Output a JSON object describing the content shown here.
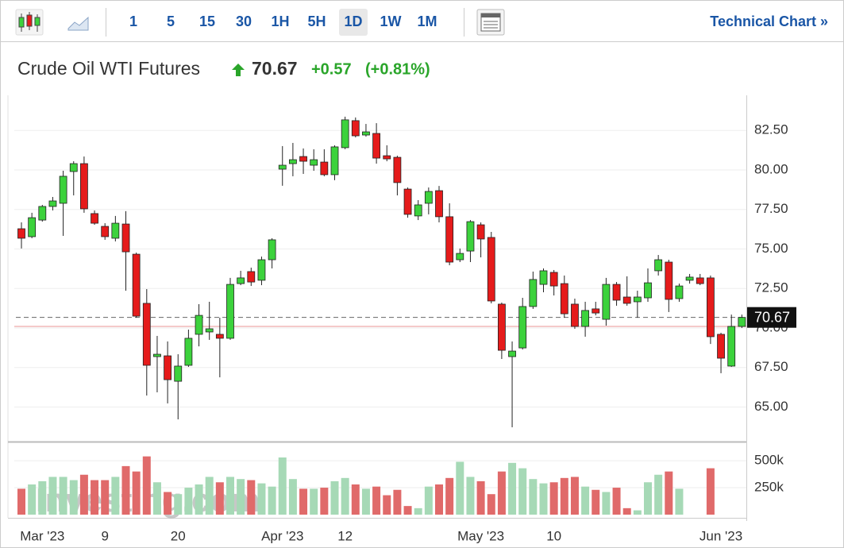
{
  "toolbar": {
    "intervals": [
      "1",
      "5",
      "15",
      "30",
      "1H",
      "5H",
      "1D",
      "1W",
      "1M"
    ],
    "selected": "1D",
    "technical_chart": "Technical Chart »"
  },
  "header": {
    "title": "Crude Oil WTI Futures",
    "price": "70.67",
    "change": "+0.57",
    "change_pct": "(+0.81%)"
  },
  "watermark": "Investing.com",
  "chart_data": {
    "type": "candlestick",
    "categories": [
      null,
      null,
      "Mar '23",
      null,
      null,
      null,
      null,
      null,
      "9",
      null,
      null,
      null,
      null,
      null,
      null,
      "20",
      null,
      null,
      null,
      null,
      null,
      null,
      null,
      null,
      null,
      "Apr '23",
      null,
      null,
      null,
      null,
      null,
      "12",
      null,
      null,
      null,
      null,
      null,
      null,
      null,
      null,
      null,
      null,
      null,
      null,
      "May '23",
      null,
      null,
      null,
      null,
      null,
      null,
      "10",
      null,
      null,
      null,
      null,
      null,
      null,
      null,
      null,
      null,
      null,
      null,
      null,
      null,
      null,
      null,
      "Jun '23",
      null,
      null
    ],
    "open": [
      76.28,
      75.78,
      76.83,
      77.69,
      77.89,
      79.9,
      80.4,
      77.24,
      76.43,
      75.68,
      76.58,
      74.67,
      71.56,
      68.19,
      68.24,
      66.63,
      67.64,
      69.6,
      69.75,
      69.6,
      69.35,
      72.81,
      73.57,
      73.02,
      74.32,
      80.05,
      80.4,
      80.85,
      80.3,
      80.5,
      79.7,
      81.41,
      83.12,
      82.21,
      82.31,
      80.9,
      80.8,
      78.79,
      77.09,
      77.89,
      78.69,
      77.04,
      74.32,
      74.87,
      76.53,
      75.73,
      71.51,
      68.19,
      68.74,
      71.36,
      72.76,
      73.52,
      72.81,
      71.51,
      70.1,
      71.21,
      70.55,
      72.76,
      71.96,
      71.66,
      71.91,
      73.62,
      74.17,
      71.86,
      73.02,
      73.17,
      73.17,
      69.6,
      67.59,
      70.1
    ],
    "high": [
      76.68,
      77.29,
      77.79,
      78.29,
      79.95,
      80.55,
      80.85,
      77.44,
      76.63,
      77.09,
      77.39,
      74.77,
      72.46,
      69.5,
      69.15,
      68.34,
      69.9,
      71.51,
      71.66,
      70.65,
      73.17,
      73.62,
      73.82,
      74.52,
      75.68,
      81.51,
      81.71,
      81.36,
      81.31,
      81.31,
      81.56,
      83.37,
      83.32,
      82.91,
      82.96,
      81.56,
      80.9,
      78.89,
      78.09,
      78.89,
      78.99,
      77.89,
      75.03,
      76.83,
      76.68,
      76.08,
      71.61,
      69.15,
      71.91,
      73.57,
      73.77,
      73.67,
      73.32,
      71.86,
      71.66,
      71.66,
      73.17,
      72.91,
      73.27,
      72.36,
      73.77,
      74.62,
      74.32,
      72.81,
      73.42,
      73.42,
      73.32,
      69.7,
      70.85,
      70.85
    ],
    "low": [
      75.03,
      75.68,
      76.73,
      77.44,
      75.83,
      78.39,
      77.29,
      76.53,
      75.58,
      75.48,
      72.36,
      70.65,
      65.73,
      65.93,
      65.23,
      64.22,
      67.54,
      68.84,
      69.25,
      66.88,
      69.25,
      72.71,
      72.66,
      72.71,
      73.77,
      79.0,
      79.6,
      79.75,
      79.95,
      79.6,
      79.35,
      81.31,
      82.06,
      82.11,
      80.4,
      80.55,
      78.39,
      76.98,
      76.83,
      77.19,
      76.68,
      73.97,
      74.17,
      74.17,
      74.47,
      71.56,
      68.04,
      63.72,
      68.64,
      71.21,
      72.26,
      72.06,
      70.65,
      69.95,
      69.45,
      70.8,
      70.15,
      71.41,
      71.41,
      70.65,
      71.66,
      73.32,
      71.01,
      71.66,
      72.81,
      72.71,
      68.99,
      67.14,
      67.54,
      70.0
    ],
    "close": [
      75.68,
      76.98,
      77.69,
      78.04,
      79.6,
      80.4,
      77.54,
      76.63,
      75.78,
      76.63,
      74.82,
      70.75,
      67.64,
      68.34,
      66.73,
      67.59,
      69.35,
      70.8,
      69.95,
      69.35,
      72.76,
      73.17,
      72.91,
      74.32,
      75.58,
      80.3,
      80.65,
      80.55,
      80.65,
      79.7,
      81.46,
      83.17,
      82.16,
      82.41,
      80.75,
      80.7,
      79.2,
      77.19,
      77.79,
      78.64,
      77.04,
      74.17,
      74.72,
      76.73,
      75.63,
      71.71,
      68.59,
      68.54,
      71.36,
      73.07,
      73.62,
      72.66,
      70.9,
      70.1,
      71.11,
      70.95,
      72.76,
      71.76,
      71.56,
      71.96,
      72.86,
      74.32,
      71.81,
      72.66,
      73.22,
      72.81,
      69.45,
      68.09,
      70.1,
      70.67
    ],
    "volume": [
      240000,
      280000,
      310000,
      350000,
      350000,
      320000,
      370000,
      320000,
      320000,
      350000,
      450000,
      400000,
      540000,
      300000,
      210000,
      190000,
      250000,
      280000,
      350000,
      300000,
      350000,
      330000,
      320000,
      290000,
      260000,
      530000,
      330000,
      240000,
      240000,
      250000,
      310000,
      340000,
      280000,
      240000,
      260000,
      180000,
      230000,
      80000,
      60000,
      260000,
      280000,
      340000,
      490000,
      350000,
      310000,
      190000,
      400000,
      480000,
      430000,
      330000,
      290000,
      300000,
      340000,
      350000,
      260000,
      230000,
      210000,
      250000,
      60000,
      40000,
      300000,
      370000,
      400000,
      240000,
      null,
      null,
      430000,
      null,
      null,
      null
    ],
    "ylim": [
      62.85,
      84.2
    ],
    "yticks": [
      {
        "value": 65,
        "label": "65.00"
      },
      {
        "value": 67.5,
        "label": "67.50"
      },
      {
        "value": 70,
        "label": "70.00"
      },
      {
        "value": 72.5,
        "label": "72.50"
      },
      {
        "value": 75,
        "label": "75.00"
      },
      {
        "value": 77.5,
        "label": "77.50"
      },
      {
        "value": 80,
        "label": "80.00"
      },
      {
        "value": 82.5,
        "label": "82.50"
      }
    ],
    "volume_ylim": [
      0,
      670000
    ],
    "volume_yticks": [
      {
        "value": 250000,
        "label": "250k"
      },
      {
        "value": 500000,
        "label": "500k"
      }
    ],
    "last_price": {
      "value": 70.67,
      "label": "70.67"
    },
    "reference_line": 70.1,
    "grid": true,
    "up_color": "#3cd23c",
    "down_color": "#e51b1b",
    "volume_up_color": "#a6d9b6",
    "volume_down_color": "#e06a6a"
  }
}
